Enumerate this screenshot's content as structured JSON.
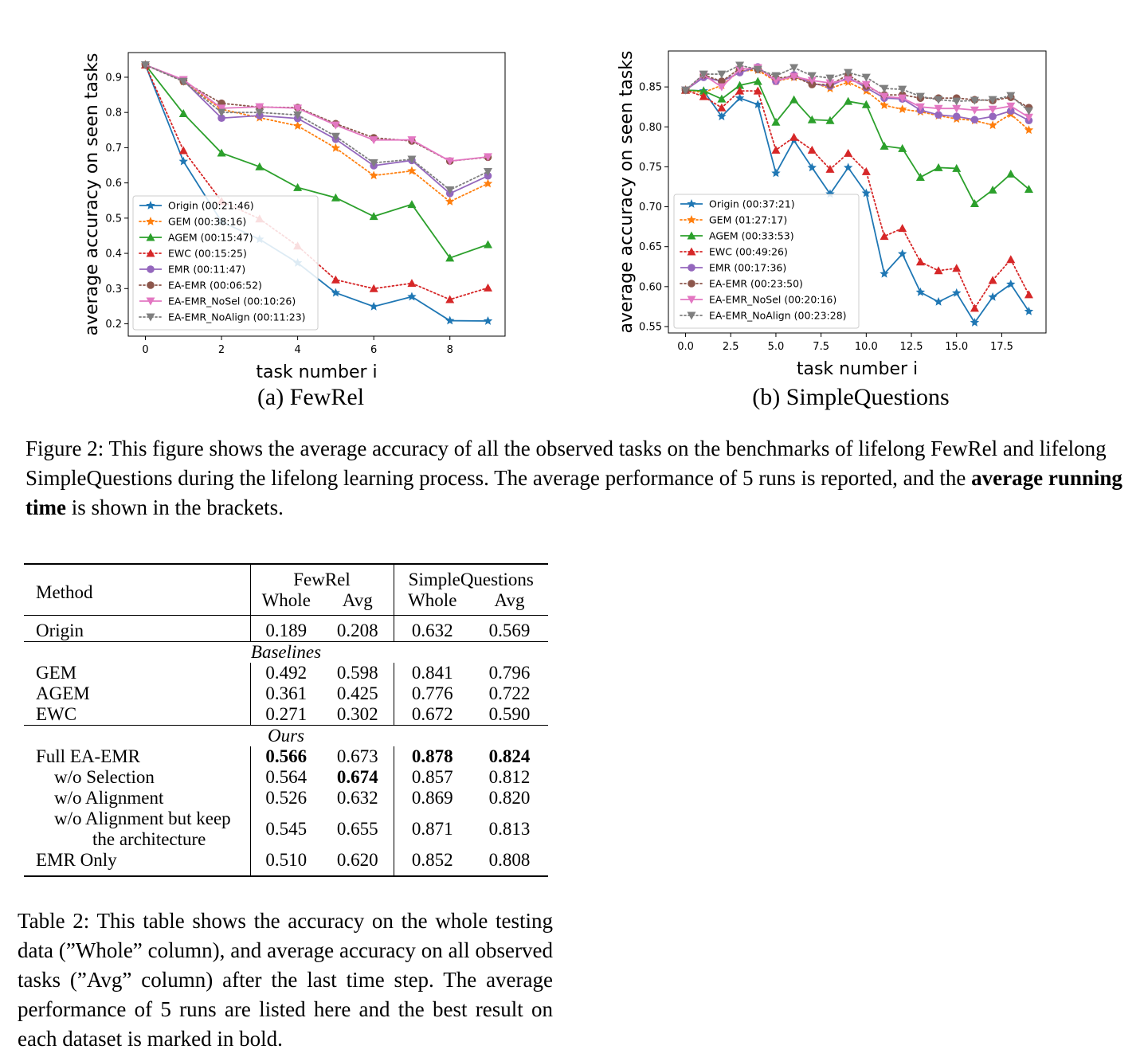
{
  "figure": {
    "subcaption_a": "(a) FewRel",
    "subcaption_b": "(b) SimpleQuestions",
    "caption_pre": "Figure 2: This figure shows the average accuracy of all the observed tasks on the benchmarks of lifelong FewRel and lifelong SimpleQuestions during the lifelong learning process. The average performance of 5 runs is reported, and the ",
    "caption_bold": "average running time",
    "caption_post": " is shown in the brackets."
  },
  "chart_data": [
    {
      "type": "line",
      "xlabel": "task number i",
      "ylabel": "average accuracy on seen tasks",
      "xlim": [
        -0.45,
        9.45
      ],
      "ylim": [
        0.165,
        0.97
      ],
      "xticks": [
        0,
        2,
        4,
        6,
        8
      ],
      "xtick_labels": [
        "0",
        "2",
        "4",
        "6",
        "8"
      ],
      "yticks": [
        0.2,
        0.3,
        0.4,
        0.5,
        0.6,
        0.7,
        0.8,
        0.9
      ],
      "ytick_labels": [
        "0.2",
        "0.3",
        "0.4",
        "0.5",
        "0.6",
        "0.7",
        "0.8",
        "0.9"
      ],
      "legend_position": "lower-left",
      "x": [
        0,
        1,
        2,
        3,
        4,
        5,
        6,
        7,
        8,
        9
      ],
      "series": [
        {
          "name": "Origin (00:21:46)",
          "color": "#1f77b4",
          "marker": "star",
          "dash": "solid",
          "values": [
            0.935,
            0.661,
            0.49,
            0.44,
            0.373,
            0.288,
            0.249,
            0.277,
            0.209,
            0.208
          ]
        },
        {
          "name": "GEM (00:38:16)",
          "color": "#ff7f0e",
          "marker": "star",
          "dash": "dotted",
          "values": [
            0.935,
            0.888,
            0.809,
            0.785,
            0.762,
            0.699,
            0.621,
            0.634,
            0.547,
            0.598
          ]
        },
        {
          "name": "AGEM (00:15:47)",
          "color": "#2ca02c",
          "marker": "triangle-up",
          "dash": "solid",
          "values": [
            0.935,
            0.797,
            0.685,
            0.646,
            0.587,
            0.558,
            0.505,
            0.539,
            0.387,
            0.425
          ]
        },
        {
          "name": "EWC (00:15:25)",
          "color": "#d62728",
          "marker": "triangle-up",
          "dash": "dotted",
          "values": [
            0.935,
            0.692,
            0.548,
            0.498,
            0.421,
            0.325,
            0.3,
            0.315,
            0.269,
            0.302
          ]
        },
        {
          "name": "EMR (00:11:47)",
          "color": "#9467bd",
          "marker": "circle",
          "dash": "solid",
          "values": [
            0.935,
            0.891,
            0.784,
            0.791,
            0.783,
            0.724,
            0.649,
            0.664,
            0.57,
            0.62
          ]
        },
        {
          "name": "EA-EMR (00:06:52)",
          "color": "#8c564b",
          "marker": "circle",
          "dash": "dotted",
          "values": [
            0.935,
            0.888,
            0.826,
            0.815,
            0.814,
            0.768,
            0.728,
            0.719,
            0.662,
            0.673
          ]
        },
        {
          "name": "EA-EMR_NoSel (00:10:26)",
          "color": "#e377c2",
          "marker": "triangle-down",
          "dash": "solid",
          "values": [
            0.935,
            0.893,
            0.812,
            0.816,
            0.812,
            0.764,
            0.722,
            0.722,
            0.662,
            0.674
          ]
        },
        {
          "name": "EA-EMR_NoAlign (00:11:23)",
          "color": "#7f7f7f",
          "marker": "triangle-down",
          "dash": "dotted",
          "values": [
            0.935,
            0.888,
            0.8,
            0.8,
            0.793,
            0.732,
            0.657,
            0.667,
            0.58,
            0.632
          ]
        }
      ]
    },
    {
      "type": "line",
      "xlabel": "task number i",
      "ylabel": "average accuracy on seen tasks",
      "xlim": [
        -0.95,
        19.95
      ],
      "ylim": [
        0.542,
        0.895
      ],
      "xticks": [
        0,
        2.5,
        5,
        7.5,
        10,
        12.5,
        15,
        17.5
      ],
      "xtick_labels": [
        "0.0",
        "2.5",
        "5.0",
        "7.5",
        "10.0",
        "12.5",
        "15.0",
        "17.5"
      ],
      "yticks": [
        0.55,
        0.6,
        0.65,
        0.7,
        0.75,
        0.8,
        0.85
      ],
      "ytick_labels": [
        "0.55",
        "0.60",
        "0.65",
        "0.70",
        "0.75",
        "0.80",
        "0.85"
      ],
      "legend_position": "lower-left",
      "x": [
        0,
        1,
        2,
        3,
        4,
        5,
        6,
        7,
        8,
        9,
        10,
        11,
        12,
        13,
        14,
        15,
        16,
        17,
        18,
        19
      ],
      "series": [
        {
          "name": "Origin (00:37:21)",
          "color": "#1f77b4",
          "marker": "star",
          "dash": "solid",
          "values": [
            0.846,
            0.845,
            0.813,
            0.836,
            0.828,
            0.742,
            0.783,
            0.749,
            0.716,
            0.749,
            0.717,
            0.616,
            0.641,
            0.593,
            0.581,
            0.592,
            0.555,
            0.587,
            0.603,
            0.569
          ]
        },
        {
          "name": "GEM (01:27:17)",
          "color": "#ff7f0e",
          "marker": "star",
          "dash": "dotted",
          "values": [
            0.846,
            0.843,
            0.852,
            0.87,
            0.871,
            0.857,
            0.862,
            0.856,
            0.848,
            0.856,
            0.845,
            0.827,
            0.822,
            0.819,
            0.814,
            0.81,
            0.808,
            0.802,
            0.816,
            0.796
          ]
        },
        {
          "name": "AGEM (00:33:53)",
          "color": "#2ca02c",
          "marker": "triangle-up",
          "dash": "solid",
          "values": [
            0.846,
            0.845,
            0.835,
            0.852,
            0.857,
            0.806,
            0.834,
            0.809,
            0.808,
            0.832,
            0.828,
            0.776,
            0.773,
            0.737,
            0.749,
            0.748,
            0.704,
            0.721,
            0.741,
            0.722
          ]
        },
        {
          "name": "EWC (00:49:26)",
          "color": "#d62728",
          "marker": "triangle-up",
          "dash": "dotted",
          "values": [
            0.846,
            0.838,
            0.824,
            0.845,
            0.845,
            0.771,
            0.787,
            0.771,
            0.747,
            0.767,
            0.744,
            0.663,
            0.673,
            0.631,
            0.62,
            0.623,
            0.573,
            0.608,
            0.634,
            0.59
          ]
        },
        {
          "name": "EMR (00:17:36)",
          "color": "#9467bd",
          "marker": "circle",
          "dash": "solid",
          "values": [
            0.846,
            0.862,
            0.857,
            0.868,
            0.875,
            0.857,
            0.865,
            0.854,
            0.851,
            0.862,
            0.849,
            0.836,
            0.835,
            0.821,
            0.815,
            0.813,
            0.809,
            0.813,
            0.82,
            0.808
          ]
        },
        {
          "name": "EA-EMR (00:23:50)",
          "color": "#8c564b",
          "marker": "circle",
          "dash": "dotted",
          "values": [
            0.846,
            0.865,
            0.857,
            0.873,
            0.872,
            0.861,
            0.863,
            0.853,
            0.853,
            0.865,
            0.851,
            0.84,
            0.84,
            0.836,
            0.836,
            0.836,
            0.834,
            0.833,
            0.837,
            0.824
          ]
        },
        {
          "name": "EA-EMR_NoSel (00:20:16)",
          "color": "#e377c2",
          "marker": "triangle-down",
          "dash": "solid",
          "values": [
            0.846,
            0.865,
            0.85,
            0.872,
            0.874,
            0.858,
            0.863,
            0.858,
            0.855,
            0.859,
            0.853,
            0.838,
            0.836,
            0.825,
            0.823,
            0.823,
            0.821,
            0.822,
            0.826,
            0.812
          ]
        },
        {
          "name": "EA-EMR_NoAlign (00:23:28)",
          "color": "#7f7f7f",
          "marker": "triangle-down",
          "dash": "dotted",
          "values": [
            0.846,
            0.866,
            0.866,
            0.877,
            0.872,
            0.864,
            0.874,
            0.864,
            0.861,
            0.868,
            0.862,
            0.848,
            0.847,
            0.838,
            0.834,
            0.832,
            0.833,
            0.834,
            0.839,
            0.82
          ]
        }
      ]
    }
  ],
  "table": {
    "method_header": "Method",
    "group1": "FewRel",
    "group2": "SimpleQuestions",
    "sub_whole": "Whole",
    "sub_avg": "Avg",
    "section_baselines": "Baselines",
    "section_ours": "Ours",
    "rows": [
      {
        "method": "Origin",
        "v1": "0.189",
        "v2": "0.208",
        "v3": "0.632",
        "v4": "0.569"
      },
      {
        "method": "GEM",
        "v1": "0.492",
        "v2": "0.598",
        "v3": "0.841",
        "v4": "0.796"
      },
      {
        "method": "AGEM",
        "v1": "0.361",
        "v2": "0.425",
        "v3": "0.776",
        "v4": "0.722"
      },
      {
        "method": "EWC",
        "v1": "0.271",
        "v2": "0.302",
        "v3": "0.672",
        "v4": "0.590"
      },
      {
        "method": "Full EA-EMR",
        "v1": "0.566",
        "v2": "0.673",
        "v3": "0.878",
        "v4": "0.824"
      },
      {
        "method": "w/o Selection",
        "v1": "0.564",
        "v2": "0.674",
        "v3": "0.857",
        "v4": "0.812"
      },
      {
        "method": "w/o Alignment",
        "v1": "0.526",
        "v2": "0.632",
        "v3": "0.869",
        "v4": "0.820"
      },
      {
        "method_line1": "w/o Alignment but keep",
        "method_line2": "the architecture",
        "v1": "0.545",
        "v2": "0.655",
        "v3": "0.871",
        "v4": "0.813"
      },
      {
        "method": "EMR Only",
        "v1": "0.510",
        "v2": "0.620",
        "v3": "0.852",
        "v4": "0.808"
      }
    ],
    "caption": "Table 2: This table shows the accuracy on the whole testing data (”Whole” column), and average accuracy on all observed tasks (”Avg” column) after the last time step. The average performance of 5 runs are listed here and the best result on each dataset is marked in bold."
  }
}
